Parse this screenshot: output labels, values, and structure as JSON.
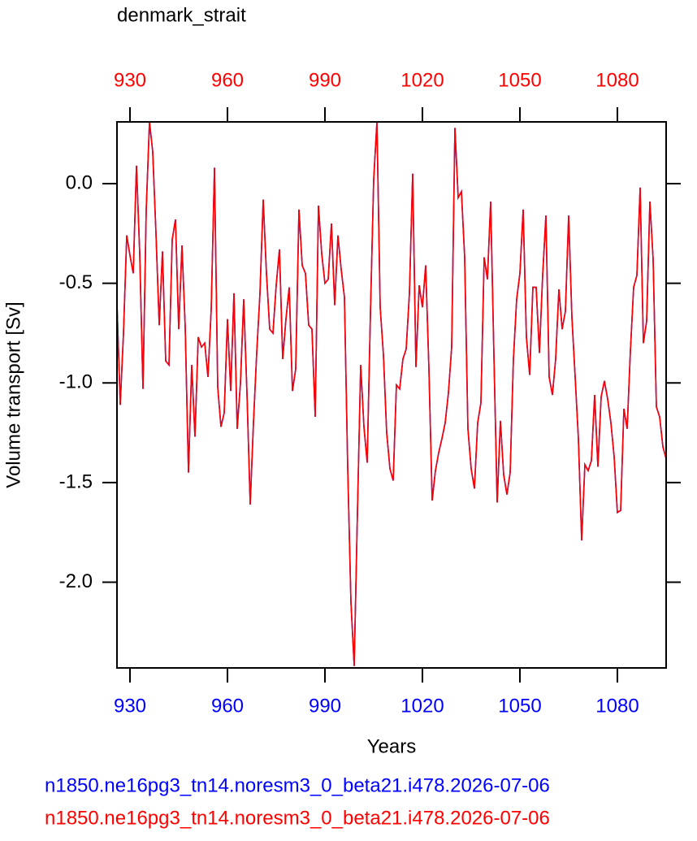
{
  "chart_data": {
    "type": "line",
    "title": "denmark_strait",
    "x_label": "Years",
    "y_label": "Volume transport [Sv]",
    "x": [
      926,
      927,
      928,
      929,
      930,
      931,
      932,
      933,
      934,
      935,
      936,
      937,
      938,
      939,
      940,
      941,
      942,
      943,
      944,
      945,
      946,
      947,
      948,
      949,
      950,
      951,
      952,
      953,
      954,
      955,
      956,
      957,
      958,
      959,
      960,
      961,
      962,
      963,
      964,
      965,
      966,
      967,
      968,
      969,
      970,
      971,
      972,
      973,
      974,
      975,
      976,
      977,
      978,
      979,
      980,
      981,
      982,
      983,
      984,
      985,
      986,
      987,
      988,
      989,
      990,
      991,
      992,
      993,
      994,
      995,
      996,
      997,
      998,
      999,
      1000,
      1001,
      1002,
      1003,
      1004,
      1005,
      1006,
      1007,
      1008,
      1009,
      1010,
      1011,
      1012,
      1013,
      1014,
      1015,
      1016,
      1017,
      1018,
      1019,
      1020,
      1021,
      1022,
      1023,
      1024,
      1025,
      1026,
      1027,
      1028,
      1029,
      1030,
      1031,
      1032,
      1033,
      1034,
      1035,
      1036,
      1037,
      1038,
      1039,
      1040,
      1041,
      1042,
      1043,
      1044,
      1045,
      1046,
      1047,
      1048,
      1049,
      1050,
      1051,
      1052,
      1053,
      1054,
      1055,
      1056,
      1057,
      1058,
      1059,
      1060,
      1061,
      1062,
      1063,
      1064,
      1065,
      1066,
      1067,
      1068,
      1069,
      1070,
      1071,
      1072,
      1073,
      1074,
      1075,
      1076,
      1077,
      1078,
      1079,
      1080,
      1081,
      1082,
      1083,
      1084,
      1085,
      1086,
      1087,
      1088,
      1089,
      1090,
      1091,
      1092,
      1093,
      1094,
      1095
    ],
    "series": [
      {
        "name": "n1850.ne16pg3_tn14.noresm3_0_beta21.i478.2026-07-06",
        "color": "#0000ff",
        "values": [
          -0.6,
          -1.11,
          -0.75,
          -0.26,
          -0.36,
          -0.45,
          0.09,
          -0.35,
          -1.03,
          -0.13,
          0.31,
          0.16,
          -0.25,
          -0.71,
          -0.34,
          -0.89,
          -0.91,
          -0.28,
          -0.18,
          -0.73,
          -0.31,
          -0.72,
          -1.45,
          -0.91,
          -1.27,
          -0.77,
          -0.82,
          -0.8,
          -0.97,
          -0.63,
          0.08,
          -1.02,
          -1.22,
          -1.15,
          -0.68,
          -1.04,
          -0.55,
          -1.23,
          -1.0,
          -0.58,
          -1.05,
          -1.61,
          -1.2,
          -0.85,
          -0.55,
          -0.08,
          -0.45,
          -0.73,
          -0.75,
          -0.51,
          -0.33,
          -0.88,
          -0.68,
          -0.52,
          -1.04,
          -0.93,
          -0.13,
          -0.41,
          -0.45,
          -0.71,
          -0.73,
          -1.17,
          -0.11,
          -0.35,
          -0.5,
          -0.48,
          -0.2,
          -0.61,
          -0.26,
          -0.43,
          -0.57,
          -1.42,
          -2.1,
          -2.42,
          -1.65,
          -0.91,
          -1.22,
          -1.4,
          -0.65,
          0.02,
          0.31,
          -0.62,
          -0.86,
          -1.25,
          -1.43,
          -1.49,
          -1.01,
          -1.03,
          -0.88,
          -0.83,
          -0.55,
          0.05,
          -0.92,
          -0.51,
          -0.62,
          -0.41,
          -0.93,
          -1.59,
          -1.44,
          -1.35,
          -1.28,
          -1.2,
          -1.05,
          -0.82,
          0.28,
          -0.07,
          -0.04,
          -0.37,
          -1.23,
          -1.43,
          -1.53,
          -1.2,
          -1.1,
          -0.37,
          -0.48,
          -0.09,
          -0.86,
          -1.6,
          -1.19,
          -1.46,
          -1.56,
          -1.45,
          -0.88,
          -0.58,
          -0.45,
          -0.13,
          -0.77,
          -0.96,
          -0.52,
          -0.52,
          -0.85,
          -0.46,
          -0.16,
          -0.97,
          -1.06,
          -0.88,
          -0.53,
          -0.73,
          -0.64,
          -0.16,
          -0.67,
          -0.97,
          -1.28,
          -1.79,
          -1.41,
          -1.44,
          -1.39,
          -1.06,
          -1.42,
          -1.07,
          -0.99,
          -1.08,
          -1.2,
          -1.37,
          -1.65,
          -1.64,
          -1.13,
          -1.23,
          -0.84,
          -0.52,
          -0.46,
          -0.02,
          -0.8,
          -0.69,
          -0.09,
          -0.38,
          -1.12,
          -1.17,
          -1.32,
          -1.38
        ]
      },
      {
        "name": "n1850.ne16pg3_tn14.noresm3_0_beta21.i478.2026-07-06",
        "color": "#ff0000",
        "axis": "x2",
        "values": [
          -0.6,
          -1.11,
          -0.75,
          -0.26,
          -0.36,
          -0.45,
          0.09,
          -0.35,
          -1.03,
          -0.13,
          0.31,
          0.16,
          -0.25,
          -0.71,
          -0.34,
          -0.89,
          -0.91,
          -0.28,
          -0.18,
          -0.73,
          -0.31,
          -0.72,
          -1.45,
          -0.91,
          -1.27,
          -0.77,
          -0.82,
          -0.8,
          -0.97,
          -0.63,
          0.08,
          -1.02,
          -1.22,
          -1.15,
          -0.68,
          -1.04,
          -0.55,
          -1.23,
          -1.0,
          -0.58,
          -1.05,
          -1.61,
          -1.2,
          -0.85,
          -0.55,
          -0.08,
          -0.45,
          -0.73,
          -0.75,
          -0.51,
          -0.33,
          -0.88,
          -0.68,
          -0.52,
          -1.04,
          -0.93,
          -0.13,
          -0.41,
          -0.45,
          -0.71,
          -0.73,
          -1.17,
          -0.11,
          -0.35,
          -0.5,
          -0.48,
          -0.2,
          -0.61,
          -0.26,
          -0.43,
          -0.57,
          -1.42,
          -2.1,
          -2.42,
          -1.65,
          -0.91,
          -1.22,
          -1.4,
          -0.65,
          0.02,
          0.31,
          -0.62,
          -0.86,
          -1.25,
          -1.43,
          -1.49,
          -1.01,
          -1.03,
          -0.88,
          -0.83,
          -0.55,
          0.05,
          -0.92,
          -0.51,
          -0.62,
          -0.41,
          -0.93,
          -1.59,
          -1.44,
          -1.35,
          -1.28,
          -1.2,
          -1.05,
          -0.82,
          0.28,
          -0.07,
          -0.04,
          -0.37,
          -1.23,
          -1.43,
          -1.53,
          -1.2,
          -1.1,
          -0.37,
          -0.48,
          -0.09,
          -0.86,
          -1.6,
          -1.19,
          -1.46,
          -1.56,
          -1.45,
          -0.88,
          -0.58,
          -0.45,
          -0.13,
          -0.77,
          -0.96,
          -0.52,
          -0.52,
          -0.85,
          -0.46,
          -0.16,
          -0.97,
          -1.06,
          -0.88,
          -0.53,
          -0.73,
          -0.64,
          -0.16,
          -0.67,
          -0.97,
          -1.28,
          -1.79,
          -1.41,
          -1.44,
          -1.39,
          -1.06,
          -1.42,
          -1.07,
          -0.99,
          -1.08,
          -1.2,
          -1.37,
          -1.65,
          -1.64,
          -1.13,
          -1.23,
          -0.84,
          -0.52,
          -0.46,
          -0.02,
          -0.8,
          -0.69,
          -0.09,
          -0.38,
          -1.12,
          -1.17,
          -1.32,
          -1.38
        ]
      }
    ],
    "xlim": [
      926,
      1095
    ],
    "xticks": [
      930,
      960,
      990,
      1020,
      1050,
      1080
    ],
    "x2lim": [
      926,
      1095
    ],
    "x2ticks": [
      930,
      960,
      990,
      1020,
      1050,
      1080
    ],
    "ylim": [
      -2.43,
      0.31
    ],
    "yticks": [
      {
        "value": 0,
        "label": "0.0"
      },
      -0.5,
      {
        "value": -1,
        "label": "-1.0"
      },
      -1.5,
      {
        "value": -2,
        "label": "-2.0"
      }
    ],
    "grid": false
  }
}
